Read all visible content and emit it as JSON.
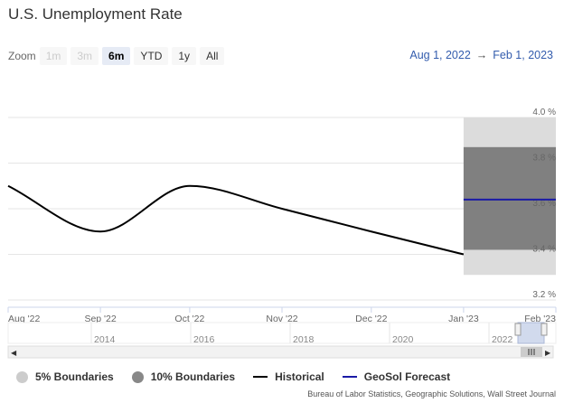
{
  "header": {
    "title": "U.S. Unemployment Rate"
  },
  "zoom": {
    "label": "Zoom",
    "buttons": [
      {
        "label": "1m",
        "state": "disabled"
      },
      {
        "label": "3m",
        "state": "disabled"
      },
      {
        "label": "6m",
        "state": "active"
      },
      {
        "label": "YTD",
        "state": "enabled"
      },
      {
        "label": "1y",
        "state": "enabled"
      },
      {
        "label": "All",
        "state": "enabled"
      }
    ]
  },
  "range": {
    "from": "Aug 1, 2022",
    "arrow": "→",
    "to": "Feb 1, 2023"
  },
  "legend": {
    "items": [
      {
        "label": "5% Boundaries",
        "color": "#cccccc",
        "type": "dot"
      },
      {
        "label": "10% Boundaries",
        "color": "#888888",
        "type": "dot"
      },
      {
        "label": "Historical",
        "color": "#000000",
        "type": "line"
      },
      {
        "label": "GeoSol Forecast",
        "color": "#1a1aa6",
        "type": "line"
      }
    ]
  },
  "credits": "Bureau of Labor Statistics, Geographic Solutions, Wall Street Journal",
  "chart_data": {
    "type": "line",
    "title": "U.S. Unemployment Rate",
    "x_tick_labels": [
      "Aug '22",
      "Sep '22",
      "Oct '22",
      "Nov '22",
      "Dec '22",
      "Jan '23",
      "Feb '23"
    ],
    "y_tick_labels": [
      "3.2 %",
      "3.4 %",
      "3.6 %",
      "3.8 %",
      "4.0 %"
    ],
    "ylim": [
      3.2,
      4.0
    ],
    "xlim": [
      "2022-08-01",
      "2023-02-01"
    ],
    "grid": true,
    "legend_position": "bottom-left",
    "series": [
      {
        "name": "Historical",
        "color": "#000000",
        "x": [
          "2022-08-01",
          "2022-09-01",
          "2022-10-01",
          "2022-11-01",
          "2022-12-01",
          "2023-01-01"
        ],
        "values": [
          3.7,
          3.5,
          3.7,
          3.6,
          3.5,
          3.4
        ]
      },
      {
        "name": "GeoSol Forecast",
        "color": "#1a1aa6",
        "x": [
          "2023-01-01",
          "2023-02-01"
        ],
        "values": [
          3.64,
          3.64
        ]
      }
    ],
    "bands": [
      {
        "name": "5% Boundaries",
        "color": "#dcdcdc",
        "x": [
          "2023-01-01",
          "2023-02-01"
        ],
        "range": [
          3.31,
          4.0
        ]
      },
      {
        "name": "10% Boundaries",
        "color": "#808080",
        "x": [
          "2023-01-01",
          "2023-02-01"
        ],
        "range": [
          3.42,
          3.87
        ]
      }
    ],
    "navigator": {
      "year_labels": [
        "2014",
        "2016",
        "2018",
        "2020",
        "2022"
      ]
    }
  }
}
